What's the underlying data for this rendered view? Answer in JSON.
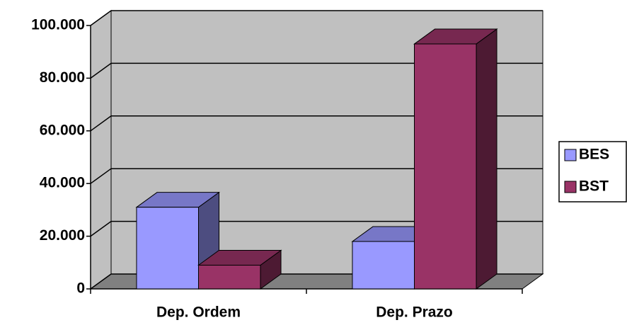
{
  "chart_data": {
    "type": "bar3d",
    "categories": [
      "Dep. Ordem",
      "Dep. Prazo"
    ],
    "series": [
      {
        "name": "BES",
        "color": "#9999ff",
        "values": [
          31000,
          18000
        ]
      },
      {
        "name": "BST",
        "color": "#993366",
        "values": [
          9000,
          93000
        ]
      }
    ],
    "ylim": [
      0,
      100000
    ],
    "yticks": [
      0,
      {
        "value": 20000,
        "label": "20.000"
      },
      {
        "value": 40000,
        "label": "40.000"
      },
      {
        "value": 60000,
        "label": "60.000"
      },
      {
        "value": 80000,
        "label": "80.000"
      },
      {
        "value": 100000,
        "label": "100.000"
      }
    ],
    "grid": true,
    "legend": "right"
  }
}
